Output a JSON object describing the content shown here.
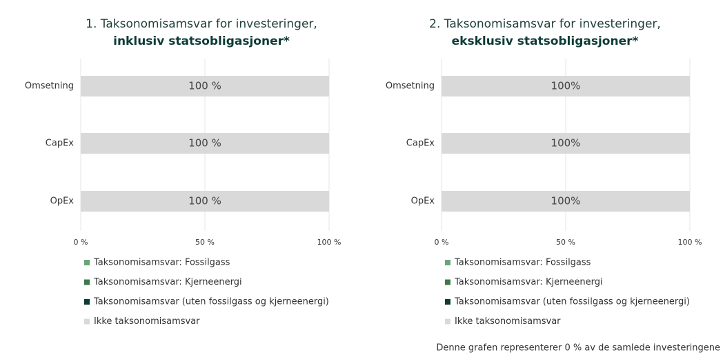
{
  "chart_data": [
    {
      "type": "stacked_bar_horizontal",
      "title": "1. Taksonomisamsvar for investeringer,",
      "subtitle": "inklusiv statsobligasjoner*",
      "categories": [
        "Omsetning",
        "CapEx",
        "OpEx"
      ],
      "series": [
        {
          "name": "Taksonomisamsvar: Fossilgass",
          "color": "#6aa57a",
          "values": [
            0,
            0,
            0
          ]
        },
        {
          "name": "Taksonomisamsvar: Kjerneenergi",
          "color": "#3d7a4a",
          "values": [
            0,
            0,
            0
          ]
        },
        {
          "name": "Taksonomisamsvar (uten fossilgass og kjerneenergi)",
          "color": "#0d3b36",
          "values": [
            0,
            0,
            0
          ]
        },
        {
          "name": "Ikke taksonomisamsvar",
          "color": "#d9d9d9",
          "values": [
            100,
            100,
            100
          ],
          "value_labels": [
            "100 %",
            "100 %",
            "100 %"
          ]
        }
      ],
      "xlim": [
        0,
        100
      ],
      "xticks": [
        {
          "value": 0,
          "label": "0 %"
        },
        {
          "value": 50,
          "label": "50 %"
        },
        {
          "value": 100,
          "label": "100 %"
        }
      ],
      "grid": true
    },
    {
      "type": "stacked_bar_horizontal",
      "title": "2. Taksonomisamsvar for investeringer,",
      "subtitle": "eksklusiv statsobligasjoner*",
      "categories": [
        "Omsetning",
        "CapEx",
        "OpEx"
      ],
      "series": [
        {
          "name": "Taksonomisamsvar: Fossilgass",
          "color": "#6aa57a",
          "values": [
            0,
            0,
            0
          ]
        },
        {
          "name": "Taksonomisamsvar: Kjerneenergi",
          "color": "#3d7a4a",
          "values": [
            0,
            0,
            0
          ]
        },
        {
          "name": "Taksonomisamsvar (uten fossilgass og kjerneenergi)",
          "color": "#0d3b36",
          "values": [
            0,
            0,
            0
          ]
        },
        {
          "name": "Ikke taksonomisamsvar",
          "color": "#d9d9d9",
          "values": [
            100,
            100,
            100
          ],
          "value_labels": [
            "100%",
            "100%",
            "100%"
          ]
        }
      ],
      "xlim": [
        0,
        100
      ],
      "xticks": [
        {
          "value": 0,
          "label": "0 %"
        },
        {
          "value": 50,
          "label": "50 %"
        },
        {
          "value": 100,
          "label": "100 %"
        }
      ],
      "grid": true,
      "annotation": "Denne grafen representerer 0 % av de samlede investeringene"
    }
  ]
}
